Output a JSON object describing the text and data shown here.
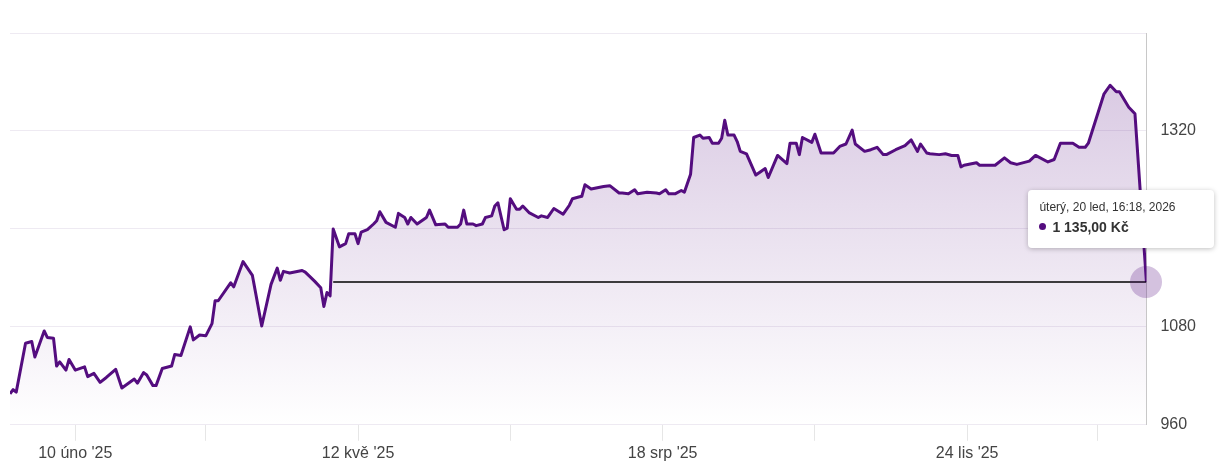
{
  "chart_data": {
    "type": "area",
    "xlim": [
      "2025-01-20",
      "2026-01-20T16:18"
    ],
    "ylim": [
      960,
      1440
    ],
    "xticks": [
      {
        "value": "2025-02-10",
        "label": "10 úno '25"
      },
      {
        "value": "2025-03-24",
        "label": null
      },
      {
        "value": "2025-05-12",
        "label": "12 kvě '25"
      },
      {
        "value": "2025-06-30",
        "label": null
      },
      {
        "value": "2025-08-18",
        "label": "18 srp '25"
      },
      {
        "value": "2025-10-06",
        "label": null
      },
      {
        "value": "2025-11-24",
        "label": "24 lis '25"
      },
      {
        "value": "2026-01-05",
        "label": null
      }
    ],
    "yticks": [
      960,
      1080,
      {
        "value": 1200,
        "label": null
      },
      1320,
      {
        "value": 1440,
        "label": null
      }
    ],
    "grid": "y",
    "legend": false,
    "series": [
      {
        "color": "#540d7f",
        "x": [
          "2025-01-20",
          "2025-01-21",
          "2025-01-22",
          "2025-01-25",
          "2025-01-27",
          "2025-01-28",
          "2025-01-31",
          "2025-02-01",
          "2025-02-03",
          "2025-02-04",
          "2025-02-05",
          "2025-02-07",
          "2025-02-08",
          "2025-02-10",
          "2025-02-13",
          "2025-02-14",
          "2025-02-16",
          "2025-02-18",
          "2025-02-20",
          "2025-02-23",
          "2025-02-25",
          "2025-03-01",
          "2025-03-02",
          "2025-03-04",
          "2025-03-05",
          "2025-03-07",
          "2025-03-08",
          "2025-03-10",
          "2025-03-13",
          "2025-03-14",
          "2025-03-16",
          "2025-03-19",
          "2025-03-20",
          "2025-03-22",
          "2025-03-24",
          "2025-03-26",
          "2025-03-27",
          "2025-03-28",
          "2025-04-01",
          "2025-04-02",
          "2025-04-05",
          "2025-04-08",
          "2025-04-11",
          "2025-04-14",
          "2025-04-16",
          "2025-04-17",
          "2025-04-18",
          "2025-04-20",
          "2025-04-24",
          "2025-04-25",
          "2025-04-28",
          "2025-04-30",
          "2025-05-01",
          "2025-05-02",
          "2025-05-03",
          "2025-05-04",
          "2025-05-06",
          "2025-05-08",
          "2025-05-09",
          "2025-05-11",
          "2025-05-12",
          "2025-05-13",
          "2025-05-15",
          "2025-05-17",
          "2025-05-18",
          "2025-05-19",
          "2025-05-21",
          "2025-05-24",
          "2025-05-25",
          "2025-05-27",
          "2025-05-28",
          "2025-05-29",
          "2025-05-31",
          "2025-06-03",
          "2025-06-04",
          "2025-06-06",
          "2025-06-09",
          "2025-06-10",
          "2025-06-13",
          "2025-06-14",
          "2025-06-15",
          "2025-06-16",
          "2025-06-18",
          "2025-06-19",
          "2025-06-21",
          "2025-06-22",
          "2025-06-24",
          "2025-06-25",
          "2025-06-26",
          "2025-06-28",
          "2025-06-29",
          "2025-06-30",
          "2025-07-02",
          "2025-07-03",
          "2025-07-04",
          "2025-07-06",
          "2025-07-09",
          "2025-07-10",
          "2025-07-12",
          "2025-07-14",
          "2025-07-17",
          "2025-07-19",
          "2025-07-20",
          "2025-07-22",
          "2025-07-23",
          "2025-07-24",
          "2025-07-26",
          "2025-07-30",
          "2025-08-01",
          "2025-08-04",
          "2025-08-05",
          "2025-08-07",
          "2025-08-09",
          "2025-08-10",
          "2025-08-13",
          "2025-08-16",
          "2025-08-17",
          "2025-08-19",
          "2025-08-20",
          "2025-08-22",
          "2025-08-24",
          "2025-08-25",
          "2025-08-27",
          "2025-08-28",
          "2025-08-30",
          "2025-08-31",
          "2025-09-02",
          "2025-09-03",
          "2025-09-05",
          "2025-09-06",
          "2025-09-07",
          "2025-09-08",
          "2025-09-10",
          "2025-09-11",
          "2025-09-12",
          "2025-09-14",
          "2025-09-17",
          "2025-09-20",
          "2025-09-21",
          "2025-09-24",
          "2025-09-27",
          "2025-09-28",
          "2025-09-30",
          "2025-10-01",
          "2025-10-02",
          "2025-10-05",
          "2025-10-06",
          "2025-10-08",
          "2025-10-12",
          "2025-10-14",
          "2025-10-16",
          "2025-10-18",
          "2025-10-19",
          "2025-10-22",
          "2025-10-24",
          "2025-10-26",
          "2025-10-28",
          "2025-10-29",
          "2025-11-01",
          "2025-11-04",
          "2025-11-06",
          "2025-11-08",
          "2025-11-09",
          "2025-11-11",
          "2025-11-12",
          "2025-11-15",
          "2025-11-17",
          "2025-11-19",
          "2025-11-21",
          "2025-11-22",
          "2025-11-23",
          "2025-11-27",
          "2025-11-28",
          "2025-12-03",
          "2025-12-06",
          "2025-12-08",
          "2025-12-10",
          "2025-12-14",
          "2025-12-16",
          "2025-12-20",
          "2025-12-22",
          "2025-12-24",
          "2025-12-28",
          "2025-12-30",
          "2026-01-01",
          "2026-01-02",
          "2026-01-07",
          "2026-01-09",
          "2026-01-11",
          "2026-01-12",
          "2026-01-15",
          "2026-01-17",
          "2026-01-20T16:18"
        ],
        "values": [
          998,
          1003,
          1000,
          1060,
          1062,
          1043,
          1075,
          1067,
          1066,
          1032,
          1037,
          1027,
          1040,
          1027,
          1031,
          1019,
          1023,
          1012,
          1018,
          1028,
          1005,
          1016,
          1011,
          1024,
          1021,
          1008,
          1008,
          1029,
          1032,
          1046,
          1045,
          1080,
          1064,
          1070,
          1069,
          1084,
          1112,
          1112,
          1134,
          1129,
          1160,
          1143,
          1081,
          1132,
          1152,
          1137,
          1148,
          1146,
          1149,
          1147,
          1136,
          1128,
          1105,
          1122,
          1118,
          1200,
          1178,
          1182,
          1194,
          1194,
          1182,
          1196,
          1199,
          1206,
          1210,
          1221,
          1208,
          1202,
          1219,
          1214,
          1206,
          1214,
          1206,
          1214,
          1223,
          1205,
          1206,
          1202,
          1202,
          1206,
          1223,
          1206,
          1206,
          1204,
          1206,
          1214,
          1216,
          1228,
          1232,
          1199,
          1201,
          1237,
          1224,
          1224,
          1228,
          1220,
          1214,
          1216,
          1214,
          1225,
          1218,
          1229,
          1237,
          1239,
          1240,
          1254,
          1249,
          1252,
          1253,
          1244,
          1244,
          1243,
          1248,
          1243,
          1245,
          1244,
          1243,
          1248,
          1243,
          1243,
          1247,
          1245,
          1267,
          1312,
          1315,
          1311,
          1312,
          1305,
          1305,
          1311,
          1333,
          1315,
          1315,
          1307,
          1295,
          1292,
          1266,
          1274,
          1263,
          1290,
          1280,
          1305,
          1305,
          1291,
          1312,
          1306,
          1316,
          1293,
          1293,
          1301,
          1304,
          1321,
          1304,
          1295,
          1297,
          1300,
          1291,
          1291,
          1297,
          1302,
          1309,
          1295,
          1304,
          1293,
          1292,
          1291,
          1292,
          1290,
          1290,
          1276,
          1278,
          1281,
          1278,
          1278,
          1287,
          1281,
          1279,
          1283,
          1290,
          1282,
          1285,
          1305,
          1305,
          1300,
          1300,
          1305,
          1365,
          1376,
          1368,
          1368,
          1349,
          1341,
          1135
        ]
      },
      {
        "type": "line",
        "color": "#000000",
        "x": [
          "2025-05-04",
          "2025-07-01",
          "2025-09-01",
          "2025-11-01",
          "2026-01-20T16:18"
        ],
        "values": [
          1135,
          1135,
          1135,
          1135,
          1135
        ]
      }
    ],
    "annotations": [
      "úterý, 20 led, 16:18, 2026",
      "1 135,00 Kč"
    ]
  }
}
